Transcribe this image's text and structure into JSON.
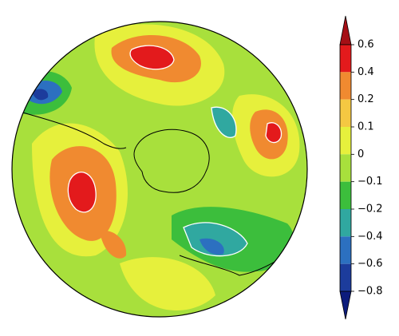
{
  "colorbar": {
    "ticks": [
      {
        "value": 0.6,
        "label": "0.6"
      },
      {
        "value": 0.4,
        "label": "0.4"
      },
      {
        "value": 0.2,
        "label": "0.2"
      },
      {
        "value": 0.1,
        "label": "0.1"
      },
      0,
      {
        "value": -0.1,
        "label": "−0.1"
      },
      {
        "value": -0.2,
        "label": "−0.2"
      },
      {
        "value": -0.4,
        "label": "−0.4"
      },
      {
        "value": -0.6,
        "label": "−0.6"
      },
      {
        "value": -0.8,
        "label": "−0.8"
      }
    ],
    "over_color": "#a50f15",
    "colors": [
      "#e31a1c",
      "#f08a30",
      "#f5c842",
      "#e6f03c",
      "#a8e03c",
      "#3cbe3c",
      "#30a8a0",
      "#2c70c0",
      "#1c3c9c"
    ],
    "under_color": "#0c1c7c"
  }
}
